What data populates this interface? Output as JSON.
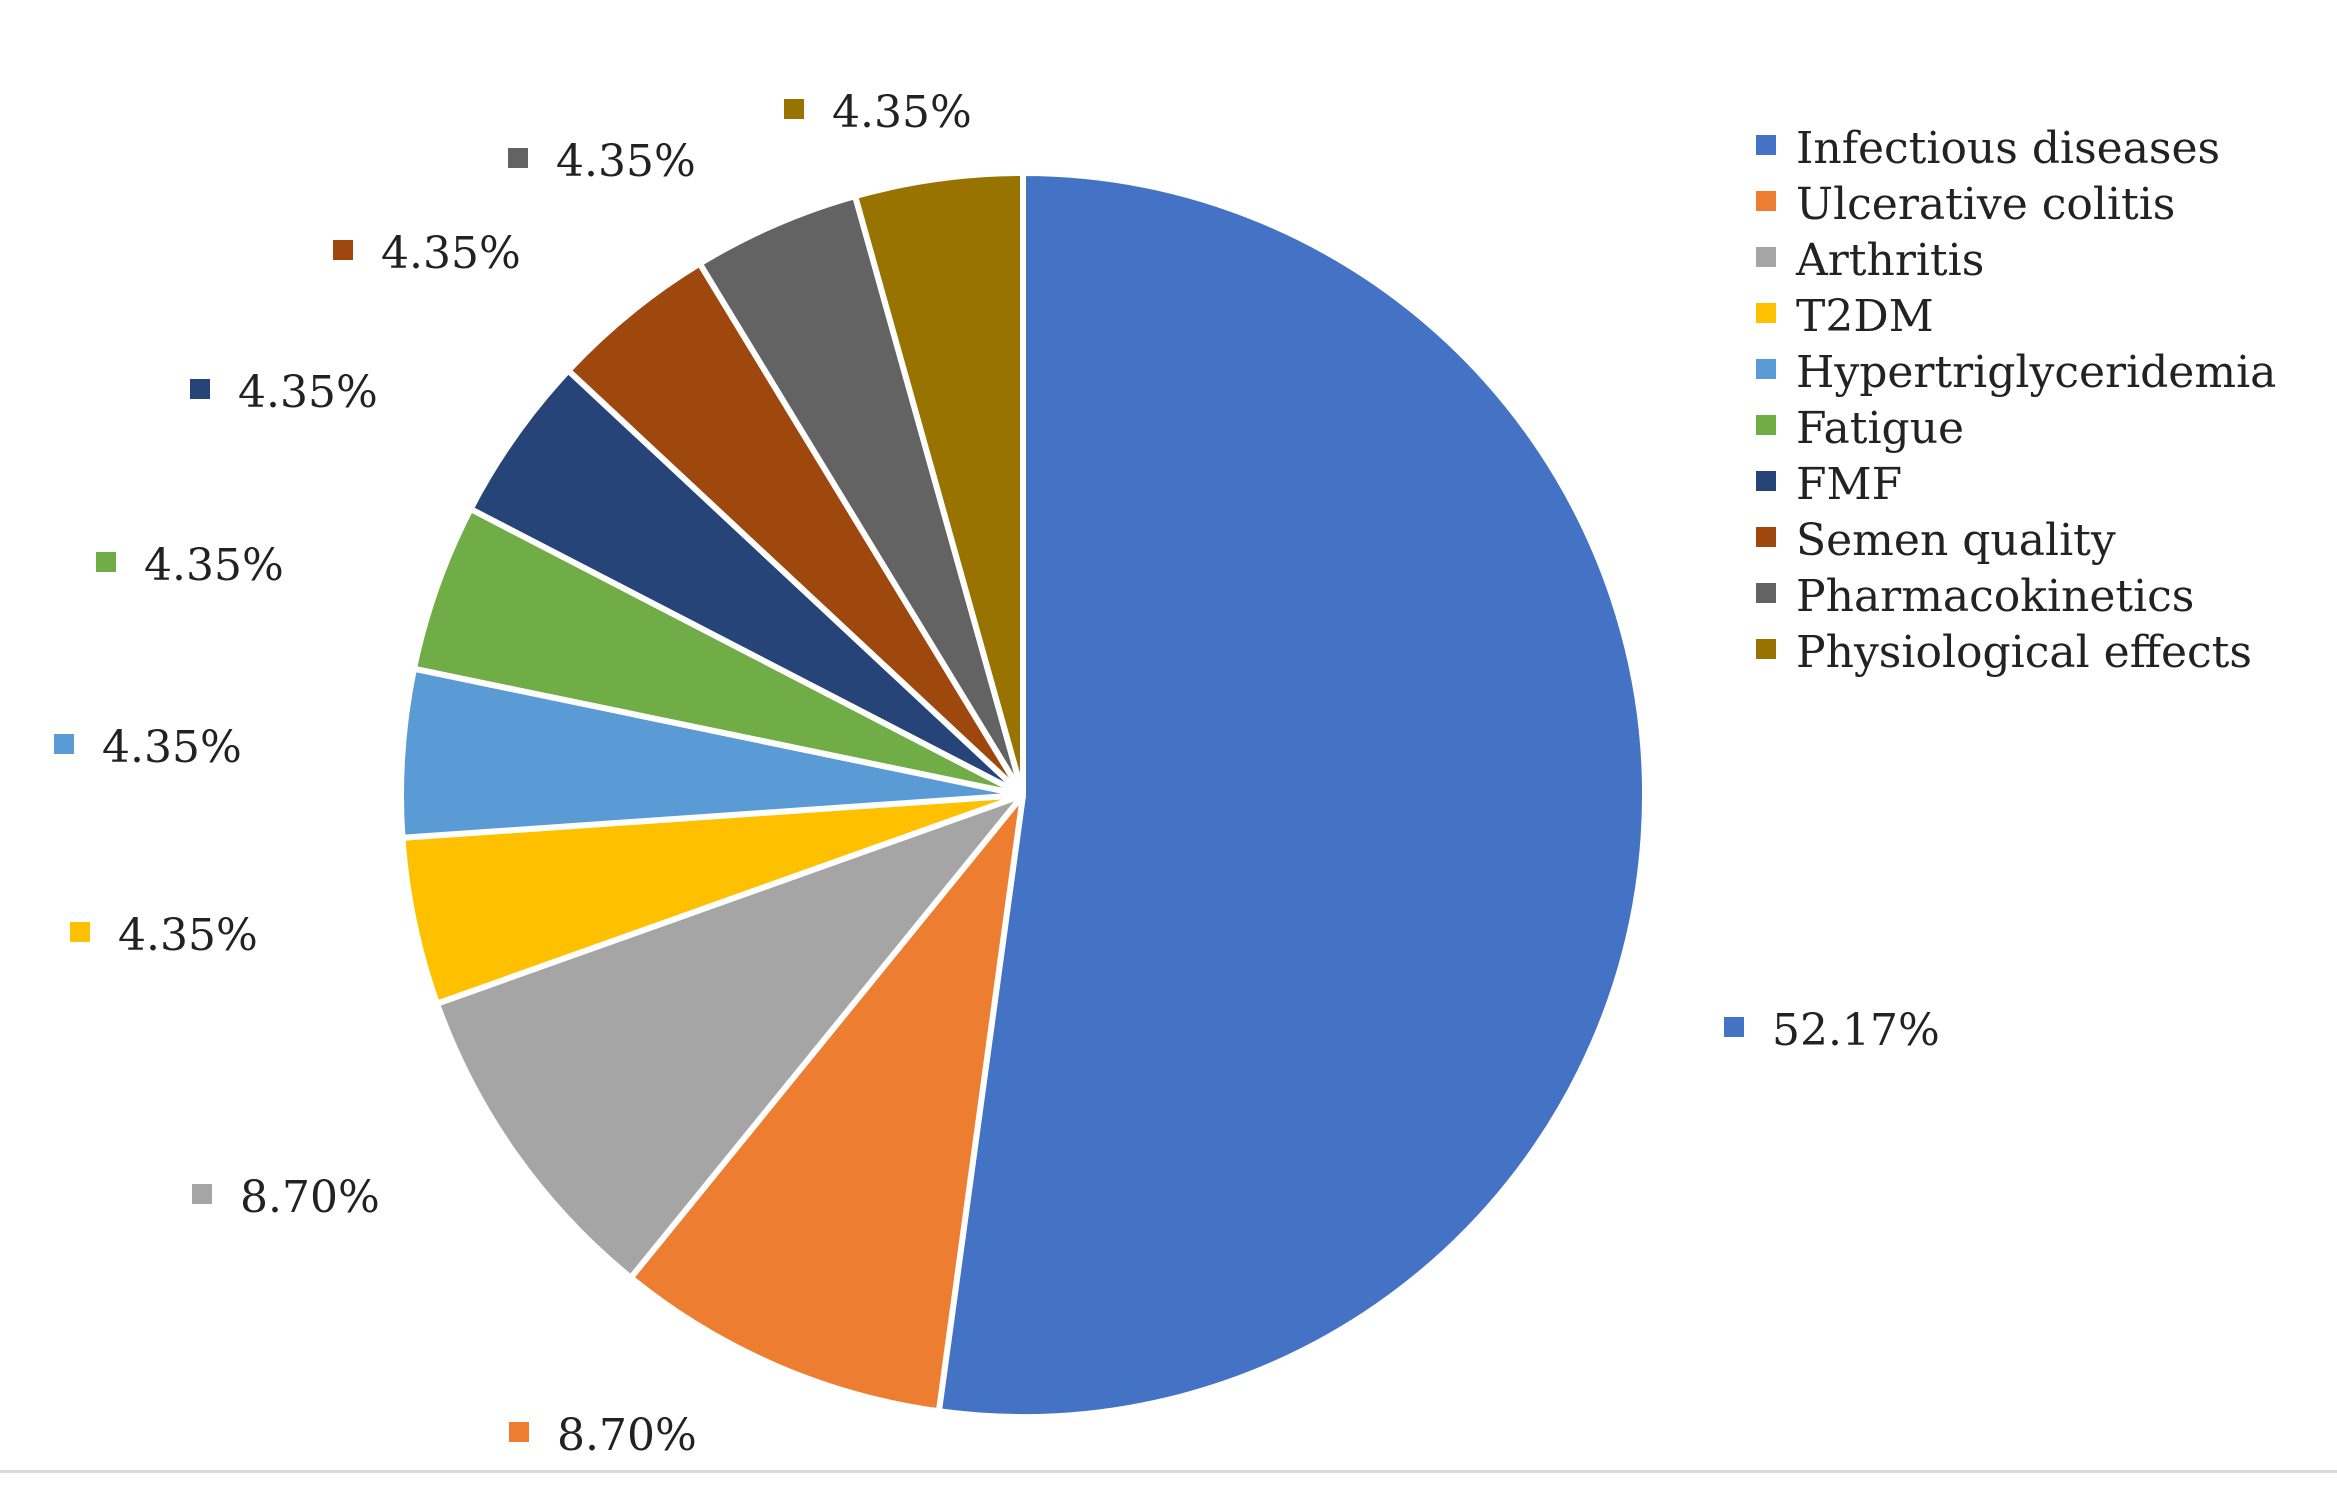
{
  "chart_data": {
    "type": "pie",
    "title": "",
    "start_angle_deg": 0,
    "direction": "clockwise",
    "slices": [
      {
        "name": "Infectious diseases",
        "value": 52.17,
        "label": "52.17%",
        "color": "#4472C4"
      },
      {
        "name": "Ulcerative colitis",
        "value": 8.7,
        "label": "8.70%",
        "color": "#ED7D31"
      },
      {
        "name": "Arthritis",
        "value": 8.7,
        "label": "8.70%",
        "color": "#A5A5A5"
      },
      {
        "name": "T2DM",
        "value": 4.35,
        "label": "4.35%",
        "color": "#FFC000"
      },
      {
        "name": "Hypertriglyceridemia",
        "value": 4.35,
        "label": "4.35%",
        "color": "#5B9BD5"
      },
      {
        "name": "Fatigue",
        "value": 4.35,
        "label": "4.35%",
        "color": "#70AD47"
      },
      {
        "name": "FMF",
        "value": 4.35,
        "label": "4.35%",
        "color": "#264478"
      },
      {
        "name": "Semen quality",
        "value": 4.35,
        "label": "4.35%",
        "color": "#9E480E"
      },
      {
        "name": "Pharmacokinetics",
        "value": 4.35,
        "label": "4.35%",
        "color": "#636363"
      },
      {
        "name": "Physiological effects",
        "value": 4.35,
        "label": "4.35%",
        "color": "#997300"
      }
    ],
    "legend_position": "top-right"
  }
}
